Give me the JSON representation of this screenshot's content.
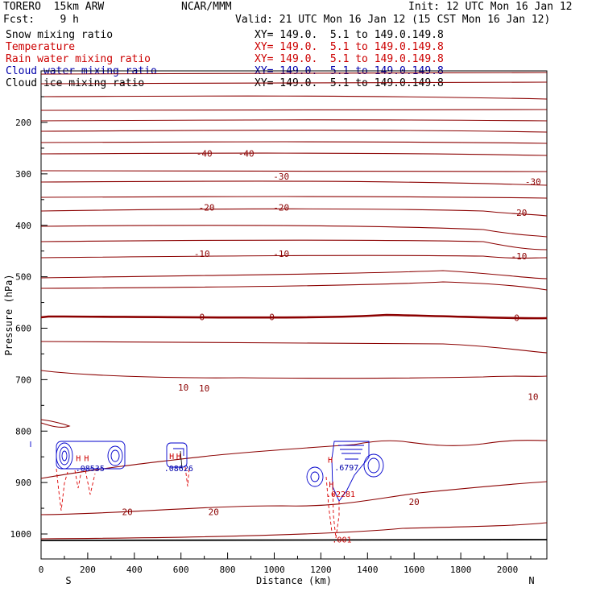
{
  "header": {
    "model": "TORERO  15km ARW",
    "center": "NCAR/MMM",
    "init": "Init: 12 UTC Mon 16 Jan 12",
    "fcst": "Fcst:    9 h",
    "valid": "Valid: 21 UTC Mon 16 Jan 12 (15 CST Mon 16 Jan 12)"
  },
  "legend": [
    {
      "label": "Snow mixing ratio",
      "xy": "XY= 149.0.  5.1 to 149.0.149.8",
      "color": "#000000"
    },
    {
      "label": "Temperature",
      "xy": "XY= 149.0.  5.1 to 149.0.149.8",
      "color": "#cc0000"
    },
    {
      "label": "Rain water mixing ratio",
      "xy": "XY= 149.0.  5.1 to 149.0.149.8",
      "color": "#cc0000"
    },
    {
      "label": "Cloud water mixing ratio",
      "xy": "XY= 149.0.  5.1 to 149.0.149.8",
      "color": "#0000aa"
    },
    {
      "label": "Cloud ice mixing ratio",
      "xy": "XY= 149.0.  5.1 to 149.0.149.8",
      "color": "#000000"
    }
  ],
  "chart_data": {
    "type": "contour cross-section",
    "xlabel": "Distance (km)",
    "ylabel": "Pressure (hPa)",
    "x_ticks": [
      0,
      200,
      400,
      600,
      800,
      1000,
      1200,
      1400,
      1600,
      1800,
      2000
    ],
    "y_ticks": [
      200,
      300,
      400,
      500,
      600,
      700,
      800,
      900,
      1000
    ],
    "xlim": [
      0,
      2180
    ],
    "ylim": [
      1050,
      100
    ],
    "left_end": "S",
    "right_end": "N",
    "temperature_labels": [
      {
        "text": "-40",
        "x": 700,
        "p": 260
      },
      {
        "text": "-40",
        "x": 880,
        "p": 260
      },
      {
        "text": "-30",
        "x": 1030,
        "p": 305
      },
      {
        "text": "-30",
        "x": 2110,
        "p": 315
      },
      {
        "text": "-20",
        "x": 710,
        "p": 365
      },
      {
        "text": "-20",
        "x": 1030,
        "p": 365
      },
      {
        "text": "-20",
        "x": 2050,
        "p": 375
      },
      {
        "text": "-10",
        "x": 690,
        "p": 455
      },
      {
        "text": "-10",
        "x": 1030,
        "p": 455
      },
      {
        "text": "-10",
        "x": 2050,
        "p": 460
      },
      {
        "text": "0",
        "x": 690,
        "p": 578
      },
      {
        "text": "0",
        "x": 990,
        "p": 578
      },
      {
        "text": "0",
        "x": 2040,
        "p": 580
      },
      {
        "text": "10",
        "x": 610,
        "p": 715
      },
      {
        "text": "10",
        "x": 700,
        "p": 717
      },
      {
        "text": "10",
        "x": 2110,
        "p": 733
      },
      {
        "text": "20",
        "x": 370,
        "p": 957
      },
      {
        "text": "20",
        "x": 740,
        "p": 957
      },
      {
        "text": "20",
        "x": 1600,
        "p": 937
      }
    ],
    "cloud_labels": [
      {
        "text": "H",
        "x": 160,
        "p": 852,
        "color": "#cc0000"
      },
      {
        "text": "H",
        "x": 195,
        "p": 852,
        "color": "#cc0000"
      },
      {
        "text": ".08535",
        "x": 210,
        "p": 872,
        "color": "#0000aa"
      },
      {
        "text": "H",
        "x": 560,
        "p": 848,
        "color": "#cc0000"
      },
      {
        "text": "H",
        "x": 590,
        "p": 848,
        "color": "#cc0000"
      },
      {
        "text": ".08626",
        "x": 590,
        "p": 872,
        "color": "#0000aa"
      },
      {
        "text": "H",
        "x": 1240,
        "p": 855,
        "color": "#cc0000"
      },
      {
        "text": ".6797",
        "x": 1310,
        "p": 870,
        "color": "#0000aa"
      },
      {
        "text": "H",
        "x": 1245,
        "p": 903,
        "color": "#cc0000"
      },
      {
        "text": ".02281",
        "x": 1285,
        "p": 922,
        "color": "#cc0000"
      },
      {
        "text": ".001",
        "x": 1290,
        "p": 1010,
        "color": "#cc0000"
      }
    ]
  },
  "theme": {
    "temp_color": "#8b0000",
    "cloud_water_color": "#0000cc",
    "rain_color": "#dd0000"
  }
}
